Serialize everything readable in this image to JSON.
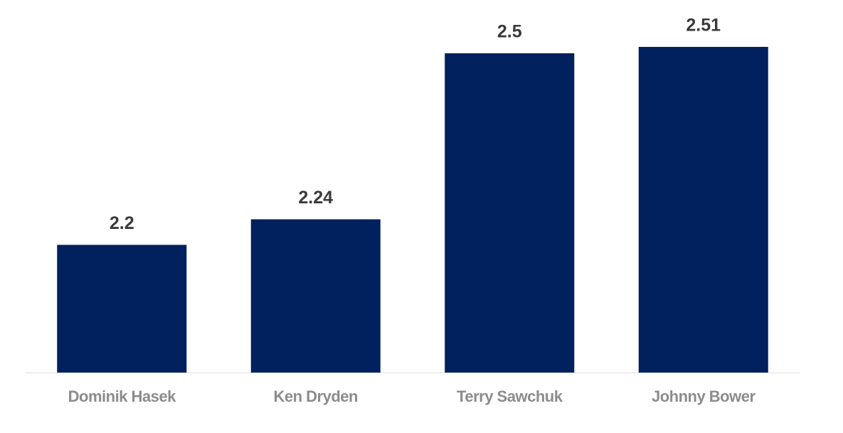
{
  "chart_data": {
    "type": "bar",
    "categories": [
      "Dominik Hasek",
      "Ken Dryden",
      "Terry Sawchuk",
      "Johnny Bower"
    ],
    "values": [
      2.2,
      2.24,
      2.5,
      2.51
    ],
    "color": "#01205e",
    "ylim": [
      2,
      2.55
    ]
  }
}
